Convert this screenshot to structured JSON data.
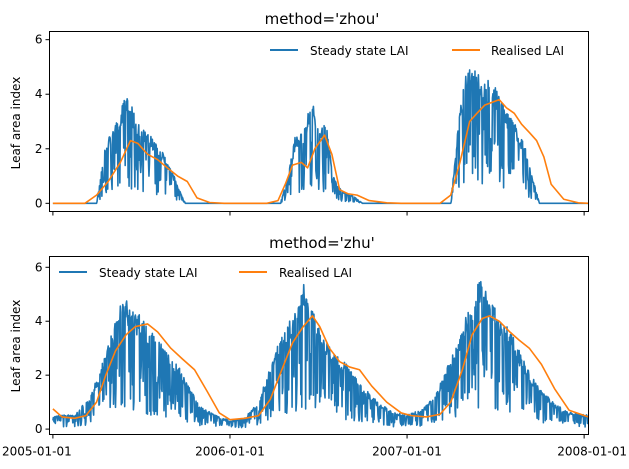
{
  "colors": {
    "steady": "#1f77b4",
    "realised": "#ff7f0e",
    "axes": "#000000"
  },
  "chart_data": [
    {
      "type": "line",
      "title": "method='zhou'",
      "xlabel": "",
      "ylabel": "Leaf area index",
      "xlim": [
        "2004-12-25",
        "2008-01-10"
      ],
      "ylim": [
        -0.3,
        6.3
      ],
      "yticks": [
        0,
        2,
        4,
        6
      ],
      "xticks": [
        "2005-01-01",
        "2006-01-01",
        "2007-01-01",
        "2008-01-01"
      ],
      "xtick_labels_visible": false,
      "legend": {
        "placement": "top-right",
        "columns": 2
      },
      "series": [
        {
          "name": "Steady state LAI",
          "kind": "steady",
          "x": [
            "2005-01-01",
            "2005-03-01",
            "2005-04-01",
            "2005-04-20",
            "2005-05-10",
            "2005-05-25",
            "2005-06-05",
            "2005-06-20",
            "2005-07-05",
            "2005-07-25",
            "2005-08-15",
            "2005-09-01",
            "2005-09-15",
            "2005-10-01",
            "2005-10-10",
            "2006-01-01",
            "2006-03-20",
            "2006-04-15",
            "2006-05-01",
            "2006-05-15",
            "2006-06-01",
            "2006-06-10",
            "2006-06-20",
            "2006-07-01",
            "2006-07-10",
            "2006-07-20",
            "2006-08-01",
            "2006-08-20",
            "2006-09-10",
            "2006-10-01",
            "2007-01-01",
            "2007-03-10",
            "2007-04-01",
            "2007-04-15",
            "2007-05-01",
            "2007-05-20",
            "2007-06-05",
            "2007-06-20",
            "2007-07-05",
            "2007-07-20",
            "2007-08-05",
            "2007-08-20",
            "2007-09-05",
            "2007-09-15",
            "2007-10-01",
            "2008-01-01",
            "2008-01-10"
          ],
          "values": [
            0,
            0,
            0,
            2.2,
            2.8,
            3.5,
            3.9,
            3.0,
            2.6,
            2.3,
            1.8,
            1.3,
            0.6,
            0,
            0,
            0,
            0,
            0,
            1.0,
            2.3,
            2.5,
            3.1,
            3.6,
            2.7,
            2.8,
            2.6,
            1.0,
            0.4,
            0.3,
            0,
            0,
            0,
            0,
            2.5,
            4.7,
            4.7,
            4.4,
            4.3,
            4.0,
            3.4,
            3.0,
            2.5,
            1.8,
            1.0,
            0,
            0,
            0
          ]
        },
        {
          "name": "Realised LAI",
          "kind": "realised",
          "x": [
            "2005-01-01",
            "2005-03-08",
            "2005-04-01",
            "2005-04-25",
            "2005-05-20",
            "2005-06-10",
            "2005-06-25",
            "2005-07-15",
            "2005-08-05",
            "2005-08-25",
            "2005-09-15",
            "2005-10-05",
            "2005-10-25",
            "2005-11-20",
            "2005-12-20",
            "2006-01-01",
            "2006-03-18",
            "2006-04-10",
            "2006-04-25",
            "2006-05-10",
            "2006-05-28",
            "2006-06-10",
            "2006-06-25",
            "2006-07-15",
            "2006-07-30",
            "2006-08-15",
            "2006-09-01",
            "2006-09-20",
            "2006-10-15",
            "2006-11-20",
            "2006-12-20",
            "2007-01-01",
            "2007-03-10",
            "2007-04-01",
            "2007-04-20",
            "2007-05-10",
            "2007-05-25",
            "2007-06-10",
            "2007-06-25",
            "2007-07-10",
            "2007-07-25",
            "2007-08-10",
            "2007-08-25",
            "2007-09-10",
            "2007-09-25",
            "2007-10-10",
            "2007-10-25",
            "2007-11-20",
            "2007-12-20",
            "2008-01-10"
          ],
          "values": [
            0,
            0,
            0.3,
            0.8,
            1.5,
            2.3,
            2.2,
            1.8,
            1.6,
            1.3,
            1.0,
            0.8,
            0.2,
            0.03,
            0,
            0,
            0,
            0.1,
            0.7,
            1.4,
            1.5,
            1.3,
            2.0,
            2.5,
            1.8,
            0.5,
            0.35,
            0.3,
            0.1,
            0.02,
            0,
            0,
            0,
            0.3,
            1.5,
            3.0,
            3.3,
            3.6,
            3.7,
            3.8,
            3.5,
            3.3,
            2.9,
            2.6,
            2.3,
            1.7,
            0.7,
            0.15,
            0.02,
            0
          ]
        }
      ]
    },
    {
      "type": "line",
      "title": "method='zhu'",
      "xlabel": "",
      "ylabel": "Leaf area index",
      "xlim": [
        "2004-12-25",
        "2008-01-10"
      ],
      "ylim": [
        -0.2,
        6.4
      ],
      "yticks": [
        0,
        2,
        4,
        6
      ],
      "xticks": [
        "2005-01-01",
        "2006-01-01",
        "2007-01-01",
        "2008-01-01"
      ],
      "xtick_labels_visible": true,
      "legend": {
        "placement": "top-left",
        "columns": 2
      },
      "series": [
        {
          "name": "Steady state LAI",
          "kind": "steady",
          "x": [
            "2005-01-01",
            "2005-02-15",
            "2005-03-20",
            "2005-04-15",
            "2005-05-05",
            "2005-05-25",
            "2005-06-10",
            "2005-07-01",
            "2005-07-20",
            "2005-08-10",
            "2005-09-01",
            "2005-09-20",
            "2005-10-10",
            "2005-11-01",
            "2005-12-01",
            "2006-01-01",
            "2006-02-01",
            "2006-03-01",
            "2006-04-01",
            "2006-04-20",
            "2006-05-10",
            "2006-06-01",
            "2006-06-15",
            "2006-07-05",
            "2006-07-25",
            "2006-08-15",
            "2006-09-05",
            "2006-10-01",
            "2006-11-01",
            "2006-12-01",
            "2007-01-01",
            "2007-02-01",
            "2007-03-01",
            "2007-04-01",
            "2007-04-25",
            "2007-05-15",
            "2007-06-01",
            "2007-06-20",
            "2007-07-10",
            "2007-08-01",
            "2007-08-20",
            "2007-09-10",
            "2007-10-01",
            "2007-11-01",
            "2007-12-01",
            "2008-01-10"
          ],
          "values": [
            0.5,
            0.5,
            1.2,
            2.5,
            3.5,
            4.8,
            4.3,
            4.0,
            3.5,
            3.2,
            2.5,
            2.2,
            1.5,
            0.8,
            0.5,
            0.3,
            0.4,
            1.0,
            2.6,
            3.4,
            4.0,
            5.2,
            4.5,
            3.5,
            3.0,
            2.5,
            2.2,
            1.5,
            1.0,
            0.6,
            0.5,
            0.7,
            1.2,
            2.5,
            3.6,
            4.6,
            5.4,
            4.7,
            4.0,
            3.5,
            2.8,
            2.0,
            1.5,
            0.9,
            0.6,
            0.5
          ]
        },
        {
          "name": "Realised LAI",
          "kind": "realised",
          "x": [
            "2005-01-01",
            "2005-01-20",
            "2005-02-15",
            "2005-03-10",
            "2005-04-01",
            "2005-04-20",
            "2005-05-10",
            "2005-06-01",
            "2005-06-20",
            "2005-07-15",
            "2005-08-05",
            "2005-09-01",
            "2005-09-25",
            "2005-10-20",
            "2005-11-15",
            "2005-12-10",
            "2006-01-01",
            "2006-02-01",
            "2006-03-01",
            "2006-03-25",
            "2006-04-20",
            "2006-05-10",
            "2006-06-01",
            "2006-06-20",
            "2006-07-05",
            "2006-07-25",
            "2006-08-15",
            "2006-09-05",
            "2006-09-25",
            "2006-10-20",
            "2006-11-20",
            "2006-12-20",
            "2007-01-10",
            "2007-02-10",
            "2007-03-10",
            "2007-04-01",
            "2007-04-25",
            "2007-05-15",
            "2007-06-05",
            "2007-06-20",
            "2007-07-10",
            "2007-08-01",
            "2007-08-20",
            "2007-09-10",
            "2007-10-05",
            "2007-11-01",
            "2007-12-01",
            "2008-01-10"
          ],
          "values": [
            0.75,
            0.45,
            0.4,
            0.5,
            1.0,
            2.0,
            2.9,
            3.5,
            3.8,
            3.9,
            3.6,
            3.0,
            2.6,
            2.2,
            1.4,
            0.6,
            0.35,
            0.4,
            0.5,
            1.1,
            2.3,
            3.2,
            3.8,
            4.2,
            3.8,
            3.0,
            2.5,
            2.3,
            2.2,
            1.6,
            1.0,
            0.6,
            0.5,
            0.45,
            0.55,
            1.0,
            2.2,
            3.5,
            4.1,
            4.2,
            4.0,
            3.6,
            3.3,
            3.0,
            2.4,
            1.5,
            0.7,
            0.45
          ]
        }
      ]
    }
  ]
}
